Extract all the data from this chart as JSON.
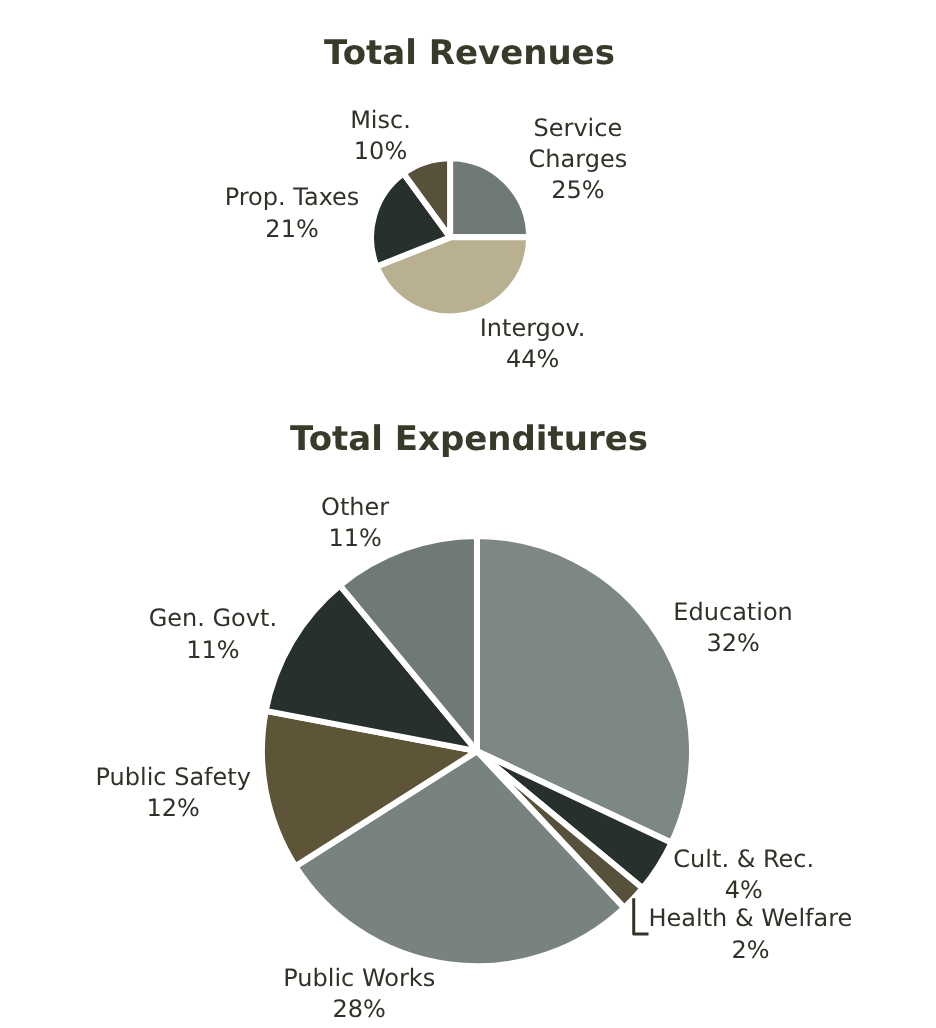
{
  "chart_data": [
    {
      "type": "pie",
      "title": "Total Revenues",
      "categories": [
        "Service\nCharges",
        "Intergov.",
        "Prop. Taxes",
        "Misc."
      ],
      "values": [
        25,
        44,
        21,
        10
      ],
      "value_labels": [
        "25%",
        "44%",
        "21%",
        "10%"
      ],
      "colors": [
        "#6f7a78",
        "#b9b091",
        "#27302b",
        "#57503a"
      ]
    },
    {
      "type": "pie",
      "title": "Total Expenditures",
      "categories": [
        "Education",
        "Cult. & Rec.",
        "Health & Welfare",
        "Public Works",
        "Public Safety",
        "Gen. Govt.",
        "Other"
      ],
      "values": [
        32,
        4,
        2,
        28,
        12,
        11,
        11
      ],
      "value_labels": [
        "32%",
        "4%",
        "2%",
        "28%",
        "12%",
        "11%",
        "11%"
      ],
      "colors": [
        "#7d8783",
        "#27302b",
        "#57503a",
        "#78837f",
        "#5e5538",
        "#27302b",
        "#6f7a78"
      ]
    }
  ]
}
